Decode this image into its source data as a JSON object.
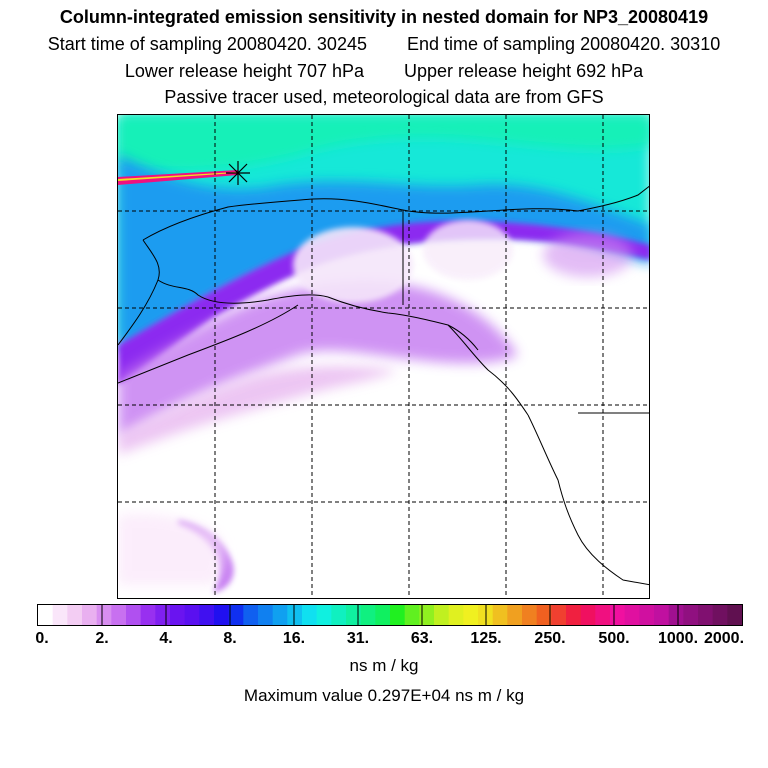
{
  "header": {
    "title": "Column-integrated emission sensitivity in nested domain for NP3_20080419",
    "start_time": "Start time of sampling 20080420. 30245",
    "end_time": "End time of sampling 20080420. 30310",
    "lower_release": "Lower release height  707 hPa",
    "upper_release": "Upper release height  692 hPa",
    "info": "Passive tracer used, meteorological data are from GFS"
  },
  "colorbar": {
    "labels": [
      "0.",
      "2.",
      "4.",
      "8.",
      "16.",
      "31.",
      "63.",
      "125.",
      "250.",
      "500.",
      "1000.",
      "2000."
    ],
    "colors": [
      "#ffffff",
      "#fae6fa",
      "#f3cdf3",
      "#e9b0f0",
      "#d88ef0",
      "#c870f0",
      "#b050f0",
      "#9830f0",
      "#8020f0",
      "#6a14f0",
      "#5a10f0",
      "#4010f0",
      "#2010f0",
      "#1030f0",
      "#1060f0",
      "#1080f0",
      "#10a0f0",
      "#10c0f0",
      "#10e0f0",
      "#10f0e0",
      "#10f0c0",
      "#10f0a0",
      "#10f080",
      "#10f060",
      "#20f020",
      "#60f020",
      "#90f020",
      "#c0f020",
      "#e0f020",
      "#f0f020",
      "#f0e020",
      "#f0c020",
      "#f0a020",
      "#f08020",
      "#f06020",
      "#f04030",
      "#f02040",
      "#f01060",
      "#f01080",
      "#f010a0",
      "#e010a0",
      "#d010a0",
      "#c010a0",
      "#a01090",
      "#901080",
      "#801070",
      "#701060",
      "#601050"
    ],
    "unit": "ns m / kg"
  },
  "max_value": "Maximum value  0.297E+04 ns m / kg",
  "colors": {
    "border": "#000000",
    "grid": "#000000"
  }
}
